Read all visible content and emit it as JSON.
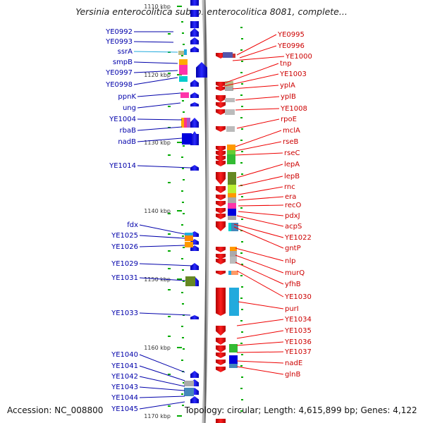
{
  "title": "Yersinia enterocolitica subsp. enterocolitica 8081, complete...",
  "accession": "Accession: NC_008800",
  "topology": "Topology: circular; Length: 4,615,899 bp; Genes: 4,122",
  "kbp_ticks": [
    {
      "label": "1110 kbp",
      "faded": true
    },
    {
      "label": "1120 kbp"
    },
    {
      "label": "1130 kbp"
    },
    {
      "label": "1140 kbp"
    },
    {
      "label": "1150 kbp"
    },
    {
      "label": "1160 kbp"
    },
    {
      "label": "1170 kbp"
    }
  ],
  "left_labels": [
    {
      "label": "YE0992",
      "color": "#0000aa"
    },
    {
      "label": "YE0993",
      "color": "#0000aa"
    },
    {
      "label": "ssrA",
      "color": "#22aadd"
    },
    {
      "label": "smpB",
      "color": "#0000aa"
    },
    {
      "label": "YE0997",
      "color": "#0000aa"
    },
    {
      "label": "YE0998",
      "color": "#0000aa"
    },
    {
      "label": "ppnK",
      "color": "#0000aa"
    },
    {
      "label": "ung",
      "color": "#0000aa"
    },
    {
      "label": "YE1004",
      "color": "#0000aa"
    },
    {
      "label": "rbaB",
      "color": "#0000aa"
    },
    {
      "label": "nadB",
      "color": "#0000aa"
    },
    {
      "label": "YE1014",
      "color": "#0000aa"
    },
    {
      "label": "fdx",
      "color": "#0000aa"
    },
    {
      "label": "YE1025",
      "color": "#0000aa"
    },
    {
      "label": "YE1026",
      "color": "#0000aa"
    },
    {
      "label": "YE1029",
      "color": "#0000aa"
    },
    {
      "label": "YE1031",
      "color": "#0000aa"
    },
    {
      "label": "YE1033",
      "color": "#0000aa"
    },
    {
      "label": "YE1040",
      "color": "#0000aa"
    },
    {
      "label": "YE1041",
      "color": "#0000aa"
    },
    {
      "label": "YE1042",
      "color": "#0000aa"
    },
    {
      "label": "YE1043",
      "color": "#0000aa"
    },
    {
      "label": "YE1044",
      "color": "#0000aa"
    },
    {
      "label": "YE1045",
      "color": "#0000aa"
    }
  ],
  "right_labels": [
    {
      "label": "YE0995"
    },
    {
      "label": "YE0996"
    },
    {
      "label": "YE1000"
    },
    {
      "label": "tnp"
    },
    {
      "label": "YE1003"
    },
    {
      "label": "yplA"
    },
    {
      "label": "yplB"
    },
    {
      "label": "YE1008"
    },
    {
      "label": "rpoE"
    },
    {
      "label": "mclA"
    },
    {
      "label": "rseB"
    },
    {
      "label": "rseC"
    },
    {
      "label": "lepA"
    },
    {
      "label": "lepB"
    },
    {
      "label": "rnc"
    },
    {
      "label": "era"
    },
    {
      "label": "recO"
    },
    {
      "label": "pdxJ"
    },
    {
      "label": "acpS"
    },
    {
      "label": "YE1022"
    },
    {
      "label": "gntP"
    },
    {
      "label": "nlp"
    },
    {
      "label": "murQ"
    },
    {
      "label": "yfhB"
    },
    {
      "label": "YE1030"
    },
    {
      "label": "purI"
    },
    {
      "label": "YE1034"
    },
    {
      "label": "YE1035"
    },
    {
      "label": "YE1036"
    },
    {
      "label": "YE1037"
    },
    {
      "label": "nadE"
    },
    {
      "label": "glnB"
    }
  ],
  "colors": {
    "forward": "#0000ee",
    "reverse": "#ee0000",
    "left_label": "#0000aa",
    "right_label": "#cc0000",
    "ssrA": "#22aadd",
    "backbone": "#888888"
  }
}
